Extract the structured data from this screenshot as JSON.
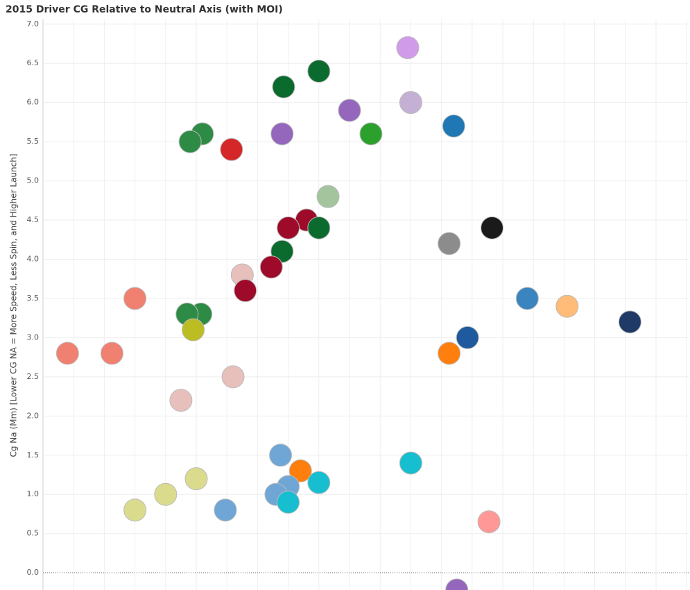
{
  "chart_data": {
    "type": "scatter",
    "title": "2015 Driver CG Relative to Neutral Axis (with MOI)",
    "y_label": "Cg Na (Mm) [Lower CG NA = More Speed, Less Spin, and Higher Launch]",
    "x": [
      11.9,
      9.0,
      7.85,
      10.0,
      12.0,
      13.4,
      5.2,
      4.8,
      6.15,
      7.8,
      10.7,
      9.3,
      8.6,
      8.0,
      9.0,
      7.8,
      7.45,
      6.5,
      6.6,
      13.25,
      14.65,
      3.0,
      5.15,
      4.7,
      4.9,
      0.8,
      2.25,
      15.8,
      17.1,
      19.15,
      13.85,
      13.25,
      6.2,
      4.5,
      7.75,
      8.4,
      12.0,
      9.0,
      8.0,
      7.6,
      8.0,
      5.95,
      5.0,
      4.0,
      3.0,
      14.55,
      13.5
    ],
    "values": [
      6.7,
      6.4,
      6.2,
      5.9,
      6.0,
      5.7,
      5.6,
      5.5,
      5.4,
      5.6,
      5.6,
      4.8,
      4.5,
      4.4,
      4.4,
      4.1,
      3.9,
      3.8,
      3.6,
      4.2,
      4.4,
      3.5,
      3.3,
      3.3,
      3.1,
      2.8,
      2.8,
      3.5,
      3.4,
      3.2,
      3.0,
      2.8,
      2.5,
      2.2,
      1.5,
      1.3,
      1.4,
      1.15,
      1.1,
      1.0,
      0.9,
      0.8,
      1.2,
      1.0,
      0.8,
      0.65,
      -0.22
    ],
    "colors": [
      "#d09be8",
      "#0b6b2e",
      "#0b6b2e",
      "#9467bd",
      "#c5b0d5",
      "#1f77b4",
      "#2e8b45",
      "#2e8b45",
      "#d62728",
      "#9467bd",
      "#2ca02c",
      "#a3c49c",
      "#9e0b2a",
      "#9e0b2a",
      "#0b6b2e",
      "#0b6b2e",
      "#9e0b2a",
      "#e7bfbb",
      "#9e0b2a",
      "#8c8c8c",
      "#1a1a1a",
      "#f08070",
      "#2e8b45",
      "#2e8b45",
      "#bcbd22",
      "#f08070",
      "#f08070",
      "#3a85c0",
      "#ffbb78",
      "#1f3a66",
      "#1f5a9e",
      "#ff7f0e",
      "#e7bfbb",
      "#e7bfbb",
      "#6fa6d6",
      "#ff7f0e",
      "#17becf",
      "#17becf",
      "#6fa6d6",
      "#6fa6d6",
      "#17becf",
      "#6fa6d6",
      "#dbdb8d",
      "#dbdb8d",
      "#dbdb8d",
      "#ff9896",
      "#9467bd"
    ],
    "xlim": [
      0,
      21.05
    ],
    "ylim": [
      -0.22,
      7.06
    ],
    "yticks": [
      {
        "value": 0,
        "label": "0.0"
      },
      0.5,
      {
        "value": 1,
        "label": "1.0"
      },
      1.5,
      {
        "value": 2,
        "label": "2.0"
      },
      2.5,
      {
        "value": 3,
        "label": "3.0"
      },
      3.5,
      {
        "value": 4,
        "label": "4.0"
      },
      4.5,
      {
        "value": 5,
        "label": "5.0"
      },
      5.5,
      {
        "value": 6,
        "label": "6.0"
      },
      6.5,
      {
        "value": 7,
        "label": "7.0"
      }
    ],
    "grid": true
  }
}
